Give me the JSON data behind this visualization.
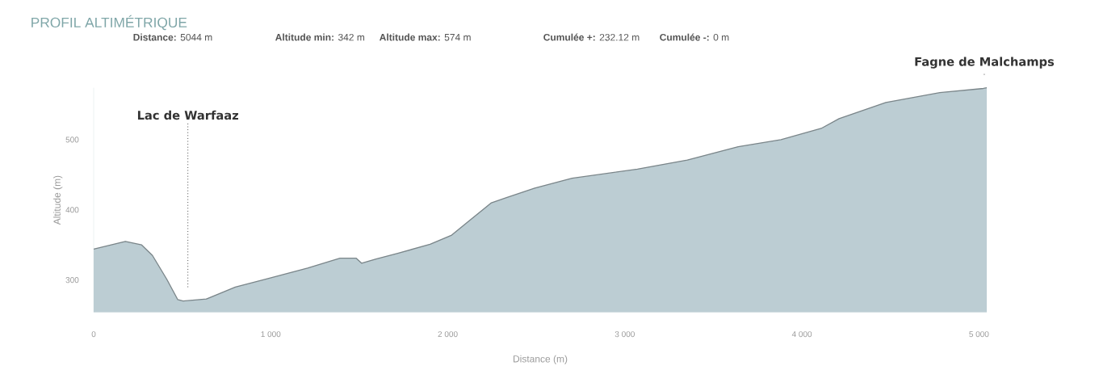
{
  "chart_data": {
    "type": "area",
    "title": "PROFIL ALTIMÉTRIQUE",
    "xlabel": "Distance (m)",
    "ylabel": "Altitude (m)",
    "annotations": [
      "**Distance:** 5044 m",
      "**Altitude min:** 342 m",
      "**Altitude max:** 574 m",
      "**Cumulée +:** 232.12 m",
      "**Cumulée -:** 0 m"
    ],
    "x": [
      0,
      179,
      271,
      332,
      413,
      475,
      505,
      637,
      800,
      984,
      1208,
      1391,
      1483,
      1513,
      1595,
      1717,
      1900,
      2022,
      2124,
      2246,
      2328,
      2491,
      2702,
      3071,
      3353,
      3640,
      3882,
      4109,
      4210,
      4474,
      4779,
      5025,
      5044
    ],
    "values": [
      344,
      355,
      350,
      335,
      301,
      272,
      270,
      273,
      290,
      302,
      317,
      331,
      331,
      324,
      330,
      338,
      351,
      364,
      385,
      410,
      417,
      431,
      445,
      458,
      471,
      490,
      500,
      516,
      530,
      553,
      567,
      573,
      574
    ],
    "color": "#bccdd3",
    "xlim": [
      0,
      5044
    ],
    "ylim": [
      254,
      574
    ],
    "xticks": [
      0,
      {
        "value": 1000,
        "label": "1 000"
      },
      {
        "value": 2000,
        "label": "2 000"
      },
      {
        "value": 3000,
        "label": "3 000"
      },
      {
        "value": 4000,
        "label": "4 000"
      },
      {
        "value": 5000,
        "label": "5 000"
      }
    ],
    "yticks": [
      300,
      400,
      500
    ],
    "ref_lines": [
      {
        "axis": "x",
        "value": 532,
        "label": "Lac de Warfaaz",
        "color": "#333333",
        "line_style": "dotted"
      },
      {
        "axis": "x",
        "value": 5030,
        "label": "Fagne de Malchamps",
        "color": "#333333",
        "line_style": "dotted"
      }
    ]
  }
}
